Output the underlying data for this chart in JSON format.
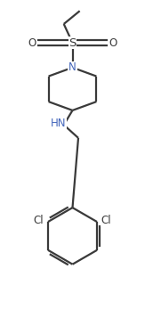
{
  "background_color": "#ffffff",
  "line_color": "#3a3a3a",
  "N_color": "#4466bb",
  "line_width": 1.6,
  "font_size": 8.5,
  "figsize": [
    1.63,
    3.66
  ],
  "dpi": 100,
  "xlim": [
    0.0,
    1.0
  ],
  "ylim": [
    0.0,
    2.245
  ]
}
